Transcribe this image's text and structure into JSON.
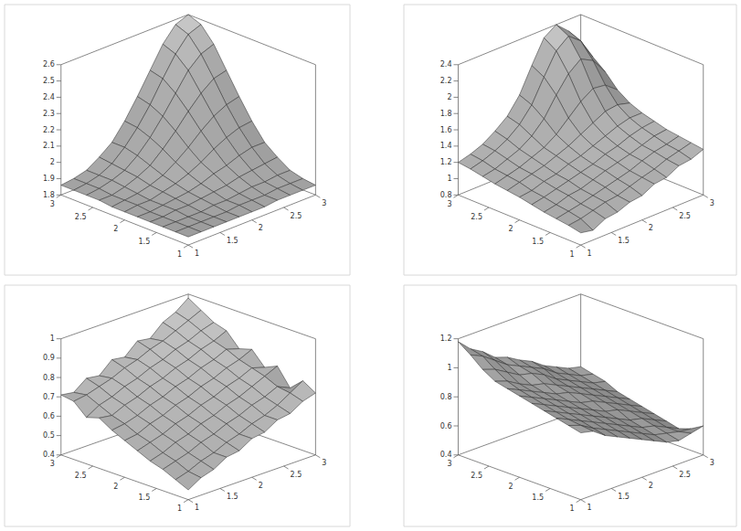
{
  "chart_data": [
    {
      "type": "surface",
      "color": "#a0a0a0",
      "x": [
        1,
        1.2,
        1.4,
        1.6,
        1.8,
        2,
        2.2,
        2.4,
        2.6,
        2.8,
        3
      ],
      "y": [
        1,
        1.2,
        1.4,
        1.6,
        1.8,
        2,
        2.2,
        2.4,
        2.6,
        2.8,
        3
      ],
      "z": [
        [
          1.85,
          1.85,
          1.85,
          1.85,
          1.85,
          1.85,
          1.85,
          1.86,
          1.86,
          1.86,
          1.86
        ],
        [
          1.85,
          1.85,
          1.85,
          1.85,
          1.85,
          1.86,
          1.86,
          1.86,
          1.87,
          1.87,
          1.87
        ],
        [
          1.85,
          1.85,
          1.85,
          1.85,
          1.86,
          1.86,
          1.87,
          1.88,
          1.88,
          1.89,
          1.89
        ],
        [
          1.85,
          1.85,
          1.86,
          1.86,
          1.87,
          1.88,
          1.89,
          1.91,
          1.92,
          1.93,
          1.94
        ],
        [
          1.85,
          1.85,
          1.86,
          1.87,
          1.88,
          1.9,
          1.93,
          1.95,
          1.98,
          2.0,
          2.0
        ],
        [
          1.85,
          1.86,
          1.86,
          1.88,
          1.9,
          1.93,
          1.97,
          2.02,
          2.06,
          2.09,
          2.1
        ],
        [
          1.85,
          1.86,
          1.87,
          1.89,
          1.92,
          1.97,
          2.03,
          2.1,
          2.16,
          2.2,
          2.22
        ],
        [
          1.86,
          1.86,
          1.88,
          1.91,
          1.95,
          2.02,
          2.1,
          2.19,
          2.27,
          2.33,
          2.35
        ],
        [
          1.86,
          1.87,
          1.89,
          1.92,
          1.98,
          2.06,
          2.16,
          2.27,
          2.38,
          2.45,
          2.48
        ],
        [
          1.86,
          1.87,
          1.89,
          1.93,
          2.0,
          2.09,
          2.2,
          2.33,
          2.45,
          2.54,
          2.57
        ],
        [
          1.86,
          1.87,
          1.89,
          1.94,
          2.0,
          2.1,
          2.22,
          2.35,
          2.48,
          2.57,
          2.6
        ]
      ],
      "xlim": [
        1,
        3
      ],
      "ylim": [
        1,
        3
      ],
      "zlim": [
        1.8,
        2.6
      ],
      "xticks": [
        1,
        1.5,
        2,
        2.5,
        3
      ],
      "yticks": [
        1,
        1.5,
        2,
        2.5,
        3
      ],
      "zticks": [
        1.8,
        1.9,
        2,
        2.1,
        2.2,
        2.3,
        2.4,
        2.5,
        2.6
      ]
    },
    {
      "type": "surface",
      "color": "#a0a0a0",
      "x": [
        1,
        1.2,
        1.4,
        1.6,
        1.8,
        2,
        2.2,
        2.4,
        2.6,
        2.8,
        3
      ],
      "y": [
        1,
        1.2,
        1.4,
        1.6,
        1.8,
        2,
        2.2,
        2.4,
        2.6,
        2.8,
        3
      ],
      "z": [
        [
          0.95,
          0.92,
          1.0,
          1.02,
          1.08,
          1.1,
          1.18,
          1.2,
          1.28,
          1.3,
          1.36
        ],
        [
          0.98,
          1.0,
          1.04,
          1.08,
          1.1,
          1.15,
          1.2,
          1.24,
          1.3,
          1.34,
          1.38
        ],
        [
          1.0,
          1.03,
          1.06,
          1.1,
          1.14,
          1.18,
          1.22,
          1.28,
          1.33,
          1.36,
          1.4
        ],
        [
          1.02,
          1.05,
          1.1,
          1.12,
          1.17,
          1.22,
          1.26,
          1.3,
          1.35,
          1.4,
          1.42
        ],
        [
          1.05,
          1.08,
          1.12,
          1.16,
          1.2,
          1.24,
          1.3,
          1.34,
          1.4,
          1.44,
          1.46
        ],
        [
          1.08,
          1.1,
          1.15,
          1.18,
          1.24,
          1.28,
          1.34,
          1.4,
          1.46,
          1.5,
          1.5
        ],
        [
          1.1,
          1.14,
          1.18,
          1.22,
          1.28,
          1.34,
          1.42,
          1.5,
          1.58,
          1.6,
          1.56
        ],
        [
          1.12,
          1.16,
          1.2,
          1.26,
          1.32,
          1.42,
          1.56,
          1.7,
          1.8,
          1.78,
          1.66
        ],
        [
          1.15,
          1.18,
          1.24,
          1.3,
          1.4,
          1.55,
          1.78,
          1.98,
          2.1,
          2.02,
          1.82
        ],
        [
          1.18,
          1.22,
          1.28,
          1.36,
          1.48,
          1.66,
          1.94,
          2.2,
          2.32,
          2.2,
          1.94
        ],
        [
          1.2,
          1.24,
          1.3,
          1.4,
          1.52,
          1.72,
          2.02,
          2.3,
          2.4,
          2.26,
          2.0
        ]
      ],
      "xlim": [
        1,
        3
      ],
      "ylim": [
        1,
        3
      ],
      "zlim": [
        0.8,
        2.4
      ],
      "xticks": [
        1,
        1.5,
        2,
        2.5,
        3
      ],
      "yticks": [
        1,
        1.5,
        2,
        2.5,
        3
      ],
      "zticks": [
        0.8,
        1,
        1.2,
        1.4,
        1.6,
        1.8,
        2,
        2.2,
        2.4
      ]
    },
    {
      "type": "surface",
      "color": "#a0a0a0",
      "x": [
        1,
        1.2,
        1.4,
        1.6,
        1.8,
        2,
        2.2,
        2.4,
        2.6,
        2.8,
        3
      ],
      "y": [
        1,
        1.2,
        1.4,
        1.6,
        1.8,
        2,
        2.2,
        2.4,
        2.6,
        2.8,
        3
      ],
      "z": [
        [
          0.45,
          0.49,
          0.51,
          0.55,
          0.56,
          0.6,
          0.61,
          0.65,
          0.66,
          0.7,
          0.72
        ],
        [
          0.48,
          0.5,
          0.53,
          0.55,
          0.58,
          0.6,
          0.63,
          0.65,
          0.68,
          0.72,
          0.76
        ],
        [
          0.51,
          0.53,
          0.55,
          0.58,
          0.6,
          0.63,
          0.65,
          0.68,
          0.7,
          0.73,
          0.7
        ],
        [
          0.53,
          0.55,
          0.58,
          0.6,
          0.63,
          0.65,
          0.68,
          0.7,
          0.73,
          0.76,
          0.79
        ],
        [
          0.56,
          0.58,
          0.6,
          0.63,
          0.65,
          0.68,
          0.7,
          0.73,
          0.75,
          0.78,
          0.76
        ],
        [
          0.59,
          0.6,
          0.63,
          0.65,
          0.68,
          0.7,
          0.73,
          0.75,
          0.78,
          0.8,
          0.83
        ],
        [
          0.62,
          0.63,
          0.65,
          0.68,
          0.7,
          0.73,
          0.75,
          0.78,
          0.8,
          0.83,
          0.81
        ],
        [
          0.66,
          0.65,
          0.68,
          0.7,
          0.73,
          0.75,
          0.78,
          0.8,
          0.83,
          0.85,
          0.88
        ],
        [
          0.64,
          0.68,
          0.7,
          0.73,
          0.75,
          0.78,
          0.8,
          0.83,
          0.85,
          0.88,
          0.9
        ],
        [
          0.7,
          0.71,
          0.73,
          0.75,
          0.78,
          0.8,
          0.83,
          0.85,
          0.88,
          0.91,
          0.94
        ],
        [
          0.71,
          0.7,
          0.75,
          0.74,
          0.8,
          0.79,
          0.85,
          0.84,
          0.9,
          0.93,
          0.98
        ]
      ],
      "xlim": [
        1,
        3
      ],
      "ylim": [
        1,
        3
      ],
      "zlim": [
        0.4,
        1
      ],
      "xticks": [
        1,
        1.5,
        2,
        2.5,
        3
      ],
      "yticks": [
        1,
        1.5,
        2,
        2.5,
        3
      ],
      "zticks": [
        0.4,
        0.5,
        0.6,
        0.7,
        0.8,
        0.9,
        1
      ]
    },
    {
      "type": "surface",
      "color": "#a0a0a0",
      "x": [
        1,
        1.2,
        1.4,
        1.6,
        1.8,
        2,
        2.2,
        2.4,
        2.6,
        2.8,
        3
      ],
      "y": [
        1,
        1.2,
        1.4,
        1.6,
        1.8,
        2,
        2.2,
        2.4,
        2.6,
        2.8,
        3
      ],
      "z": [
        [
          0.86,
          0.84,
          0.78,
          0.74,
          0.7,
          0.66,
          0.62,
          0.58,
          0.56,
          0.58,
          0.6
        ],
        [
          0.88,
          0.85,
          0.8,
          0.76,
          0.72,
          0.68,
          0.64,
          0.6,
          0.58,
          0.56,
          0.55
        ],
        [
          0.9,
          0.86,
          0.82,
          0.78,
          0.74,
          0.7,
          0.66,
          0.62,
          0.6,
          0.56,
          0.52
        ],
        [
          0.92,
          0.88,
          0.84,
          0.8,
          0.76,
          0.72,
          0.68,
          0.64,
          0.62,
          0.58,
          0.54
        ],
        [
          0.94,
          0.9,
          0.86,
          0.82,
          0.78,
          0.74,
          0.7,
          0.68,
          0.64,
          0.6,
          0.56
        ],
        [
          0.96,
          0.92,
          0.88,
          0.84,
          0.8,
          0.76,
          0.74,
          0.7,
          0.66,
          0.62,
          0.58
        ],
        [
          0.98,
          0.94,
          0.9,
          0.86,
          0.82,
          0.8,
          0.76,
          0.72,
          0.68,
          0.64,
          0.6
        ],
        [
          1.0,
          0.97,
          0.92,
          0.88,
          0.86,
          0.82,
          0.78,
          0.74,
          0.7,
          0.66,
          0.62
        ],
        [
          1.05,
          1.02,
          0.97,
          0.92,
          0.9,
          0.86,
          0.8,
          0.76,
          0.72,
          0.68,
          0.66
        ],
        [
          1.12,
          1.08,
          1.02,
          0.96,
          0.92,
          0.88,
          0.84,
          0.78,
          0.74,
          0.7,
          0.68
        ],
        [
          1.18,
          1.1,
          1.05,
          0.98,
          0.95,
          0.9,
          0.86,
          0.8,
          0.76,
          0.72,
          0.7
        ]
      ],
      "xlim": [
        1,
        3
      ],
      "ylim": [
        1,
        3
      ],
      "zlim": [
        0.4,
        1.2
      ],
      "xticks": [
        1,
        1.5,
        2,
        2.5,
        3
      ],
      "yticks": [
        1,
        1.5,
        2,
        2.5,
        3
      ],
      "zticks": [
        0.4,
        0.6,
        0.8,
        1,
        1.2
      ]
    }
  ]
}
